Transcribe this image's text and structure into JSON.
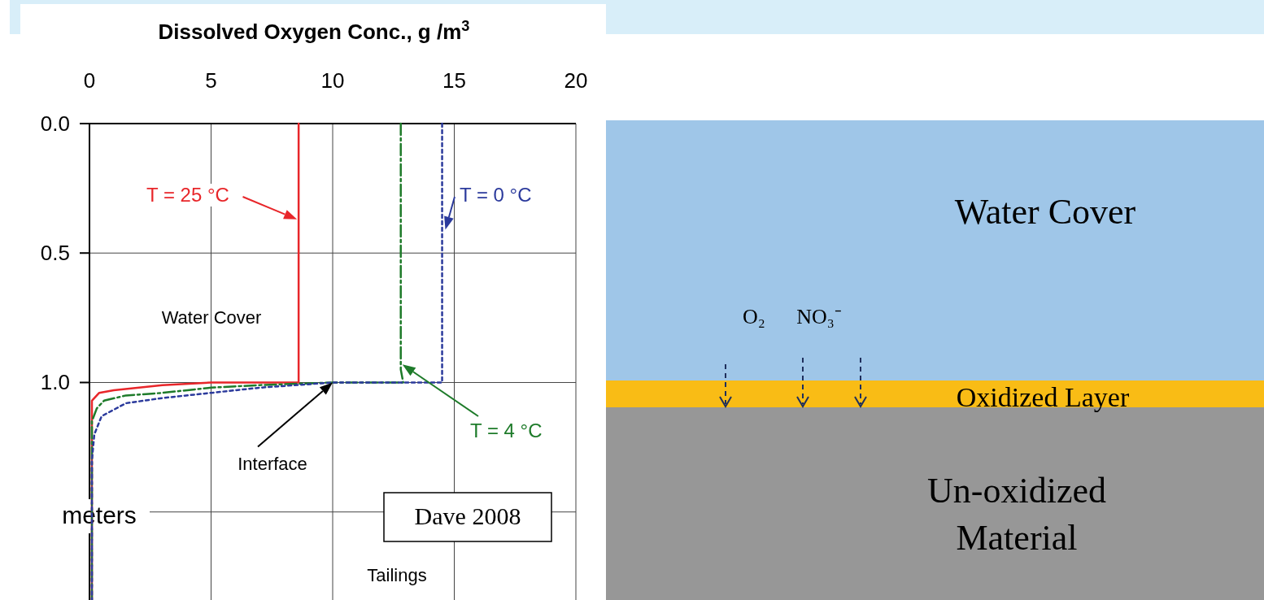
{
  "chart_data": {
    "type": "line",
    "xlabel": "Dissolved Oxygen Conc., g /m$^{3}$",
    "ylabel": "meters",
    "xlim": [
      0,
      20
    ],
    "xticks": [
      0,
      5,
      10,
      15,
      20
    ],
    "ylim": [
      1.84,
      0
    ],
    "yticks": [
      {
        "value": 0,
        "label": "0.0"
      },
      {
        "value": 0.5,
        "label": "0.5"
      },
      {
        "value": 1,
        "label": "1.0"
      },
      {
        "value": 1.5,
        "label": null
      }
    ],
    "grid": true,
    "series": [
      {
        "name": "T = 25 °C",
        "color": "#e8262a",
        "line_style": "solid",
        "x": [
          8.6,
          8.6,
          5,
          3,
          1,
          0.4,
          0.1,
          0.1
        ],
        "values": [
          0,
          1.0,
          1.0,
          1.01,
          1.03,
          1.04,
          1.07,
          1.84
        ]
      },
      {
        "name": "T = 4 °C",
        "color": "#1e7b2a",
        "line_style": "dashed",
        "x": [
          12.8,
          12.8,
          12.9,
          10,
          7,
          5,
          3,
          1.5,
          0.6,
          0.3,
          0.1,
          0.1
        ],
        "values": [
          0,
          0.95,
          1.0,
          1.0,
          1.01,
          1.02,
          1.04,
          1.05,
          1.07,
          1.1,
          1.15,
          1.84
        ]
      },
      {
        "name": "T = 0 °C",
        "color": "#2b3a9c",
        "line_style": "dotted",
        "x": [
          14.5,
          14.5,
          10,
          7,
          5,
          3,
          1.5,
          0.5,
          0.2,
          0.1,
          0.1
        ],
        "values": [
          0,
          1.0,
          1.0,
          1.02,
          1.04,
          1.06,
          1.08,
          1.13,
          1.2,
          1.3,
          1.84
        ]
      }
    ],
    "annotations": [
      "Interface",
      "Water Cover",
      "Tailings",
      "Dave 2008",
      "Water Cover",
      "O₂",
      "NO₃⁻",
      "Oxidized Layer",
      "Un-oxidized Material"
    ]
  }
}
